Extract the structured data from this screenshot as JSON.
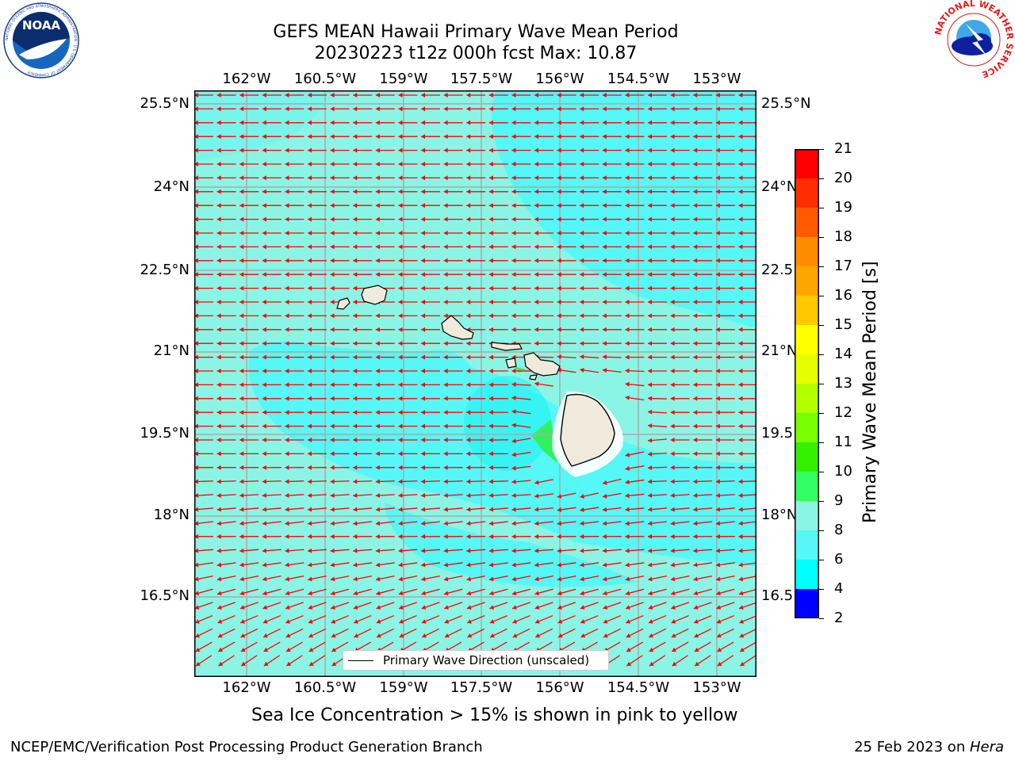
{
  "title": {
    "line1": "GEFS MEAN Hawaii Primary Wave Mean Period",
    "line2": "20230223 t12z 000h fcst   Max: 10.87"
  },
  "map": {
    "lon_ticks": [
      "162°W",
      "160.5°W",
      "159°W",
      "157.5°W",
      "156°W",
      "154.5°W",
      "153°W"
    ],
    "lat_ticks": [
      "25.5°N",
      "24°N",
      "22.5°N",
      "21°N",
      "19.5°N",
      "18°N",
      "16.5°N"
    ],
    "lat_ticks_right": [
      "25.5°N",
      "24°N",
      "22.5",
      "21°N",
      "19.5",
      "18°N",
      "16.5"
    ],
    "ocean_colors": {
      "light": "#8af5e5",
      "mid": "#56f7f7",
      "deep": "#1ef2f2"
    },
    "land_color": "#efeadb",
    "arrow_color": "#ff0000",
    "legend_label": "Primary Wave Direction (unscaled)"
  },
  "colorbar": {
    "ticks": [
      "21",
      "20",
      "19",
      "18",
      "17",
      "16",
      "15",
      "14",
      "13",
      "12",
      "11",
      "10",
      "9",
      "8",
      "6",
      "4",
      "2"
    ],
    "colors": [
      "#ff0000",
      "#ff2d00",
      "#ff5a00",
      "#ff8c00",
      "#ffa500",
      "#ffc800",
      "#ffff00",
      "#e6ff00",
      "#b4ff00",
      "#78ff00",
      "#32f000",
      "#32ff64",
      "#8af5e5",
      "#56f7f7",
      "#00ffff",
      "#0080ff",
      "#0000ff"
    ],
    "label": "Primary Wave Mean Period [s]"
  },
  "caption": "Sea Ice Concentration > 15% is shown in pink to yellow",
  "footer": {
    "left": "NCEP/EMC/Verification Post Processing Product Generation Branch",
    "right_date": "25 Feb 2023 on ",
    "right_host": "Hera"
  },
  "logos": {
    "noaa_text": "NOAA",
    "noaa_ring": "NATIONAL OCEANIC AND ATMOSPHERIC ADMINISTRATION · U.S. DEPARTMENT OF COMMERCE",
    "nws_ring": "NATIONAL WEATHER SERVICE"
  }
}
